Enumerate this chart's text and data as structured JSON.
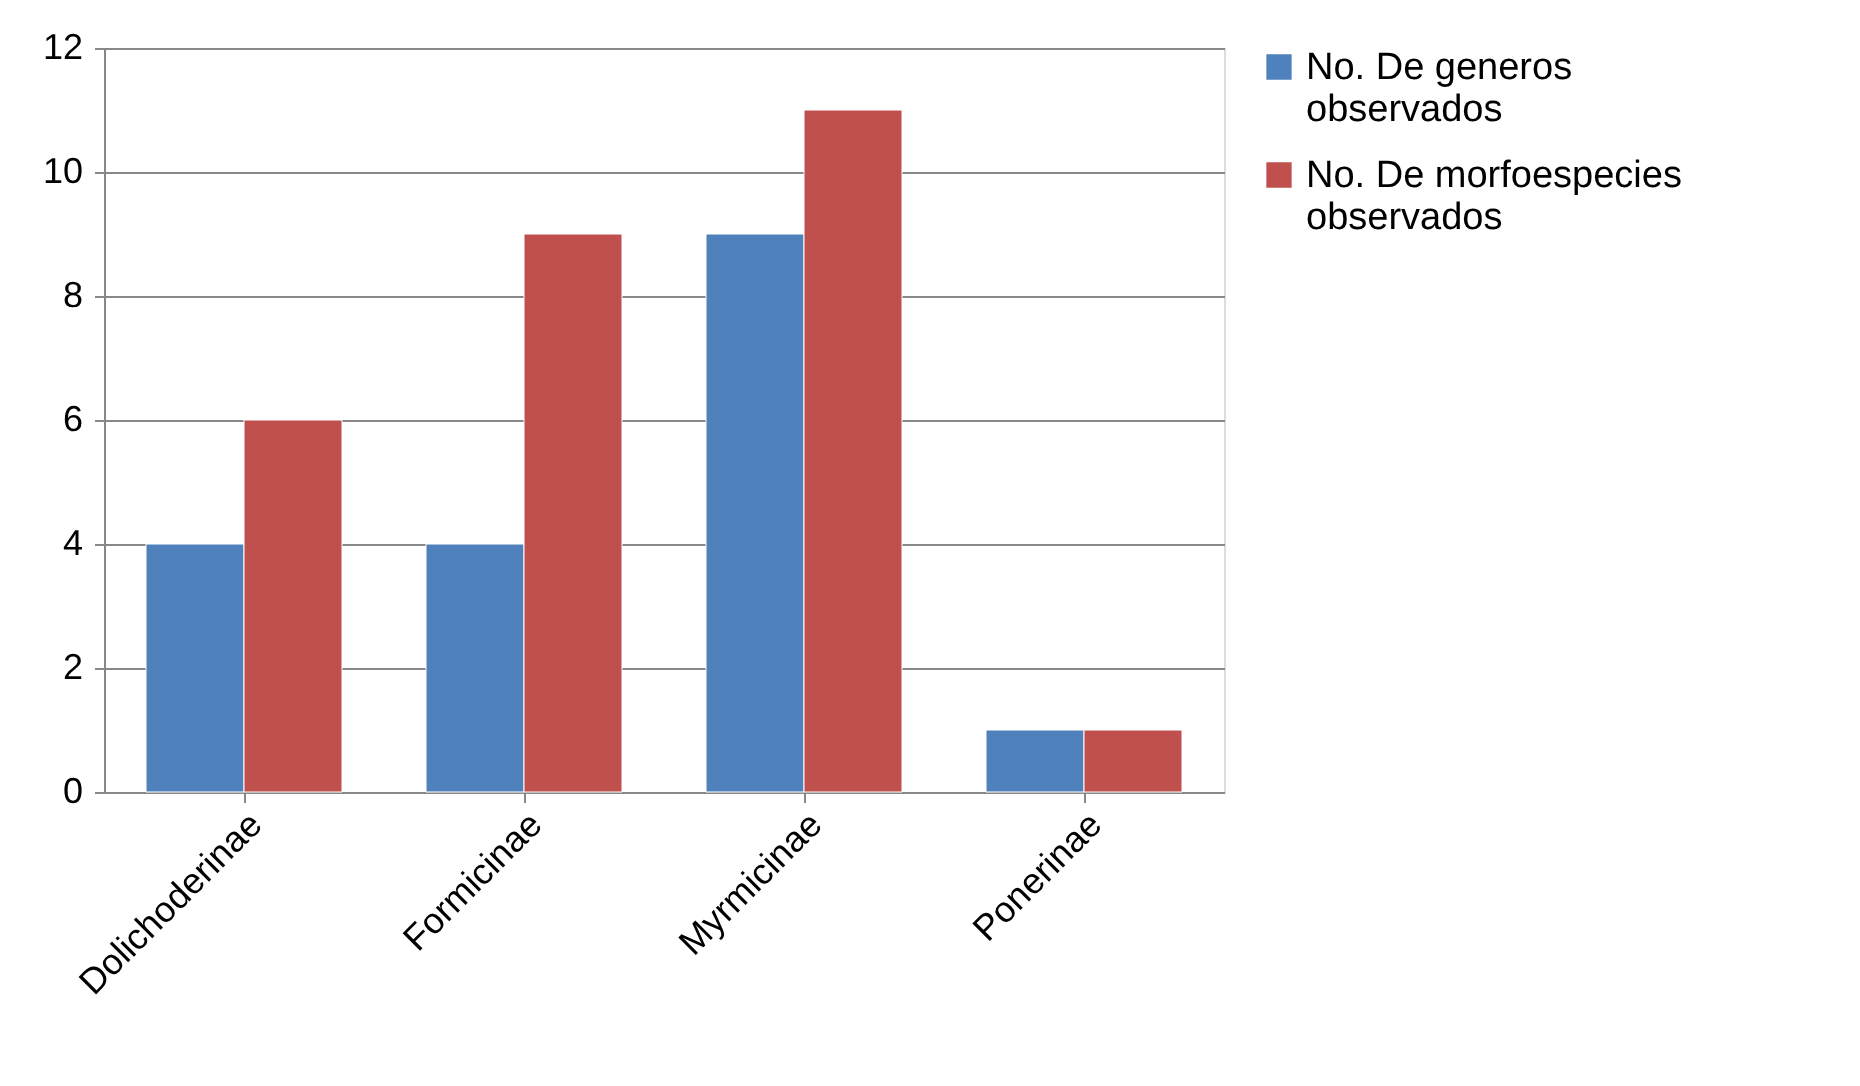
{
  "chart_data": {
    "type": "bar",
    "categories": [
      "Dolichoderinae",
      "Formicinae",
      "Myrmicinae",
      "Ponerinae"
    ],
    "series": [
      {
        "name": "No. De generos observados",
        "color": "#4f81bd",
        "values": [
          4,
          4,
          9,
          1
        ]
      },
      {
        "name": "No. De morfoespecies observados",
        "color": "#c0504d",
        "values": [
          6,
          9,
          11,
          1
        ]
      }
    ],
    "ylim": [
      0,
      12
    ],
    "yticks": [
      0,
      2,
      4,
      6,
      8,
      10,
      12
    ],
    "grid": "y",
    "legend": "right"
  }
}
